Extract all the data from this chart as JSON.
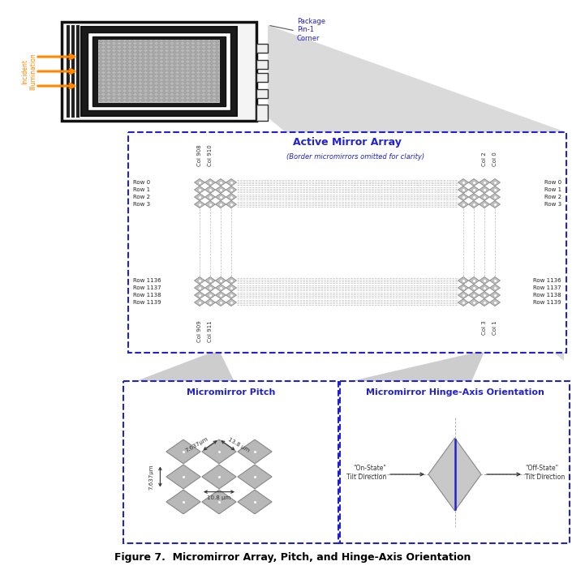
{
  "title": "Figure 7.  Micromirror Array, Pitch, and Hinge-Axis Orientation",
  "bg_color": "#ffffff",
  "dashed_border_color": "#2222cc",
  "blue_title_color": "#2222cc",
  "orange_color": "#ff8800",
  "active_array_title": "Active Mirror Array",
  "micromirror_pitch_title": "Micromirror Pitch",
  "hinge_axis_title": "Micromirror Hinge-Axis Orientation",
  "border_note": "(Border micromirrors omitted for clarity)",
  "pitch_label1": "7.637μm",
  "pitch_label2": "10.8 μm",
  "pitch_label3": "7.637μm",
  "pitch_label4": "13.8 μm",
  "on_state": "\"On-State\"\nTilt Direction",
  "off_state": "\"Off-State\"\nTilt Direction",
  "incident_label": "Incident\nIllumination",
  "package_label": "Package\nPin-1\nCorner"
}
